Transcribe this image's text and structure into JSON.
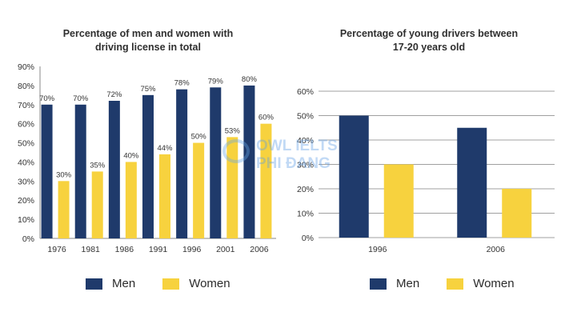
{
  "colors": {
    "men": "#1f3a6b",
    "women": "#f7d23e",
    "grid": "#a0a0a0",
    "axis": "#888888"
  },
  "chart_data": [
    {
      "type": "bar",
      "title": "Percentage of men and women with driving license in total",
      "title_lines": [
        "Percentage of men and women with",
        "driving license in total"
      ],
      "categories": [
        "1976",
        "1981",
        "1986",
        "1991",
        "1996",
        "2001",
        "2006"
      ],
      "series": [
        {
          "name": "Men",
          "values": [
            70,
            70,
            72,
            75,
            78,
            79,
            80
          ],
          "labels": [
            "70%",
            "70%",
            "72%",
            "75%",
            "78%",
            "79%",
            "80%"
          ]
        },
        {
          "name": "Women",
          "values": [
            30,
            35,
            40,
            44,
            50,
            53,
            60
          ],
          "labels": [
            "30%",
            "35%",
            "40%",
            "44%",
            "50%",
            "53%",
            "60%"
          ]
        }
      ],
      "ylim": [
        0,
        90
      ],
      "yticks": [
        "0%",
        "10%",
        "20%",
        "30%",
        "40%",
        "50%",
        "60%",
        "70%",
        "80%",
        "90%"
      ],
      "xlabel": "",
      "ylabel": "",
      "grid": false,
      "legend": [
        "Men",
        "Women"
      ]
    },
    {
      "type": "bar",
      "title": "Percentage of young drivers between 17-20 years old",
      "title_lines": [
        "Percentage of young drivers between",
        "17-20 years old"
      ],
      "categories": [
        "1996",
        "2006"
      ],
      "series": [
        {
          "name": "Men",
          "values": [
            50,
            45
          ]
        },
        {
          "name": "Women",
          "values": [
            30,
            20
          ]
        }
      ],
      "ylim": [
        0,
        60
      ],
      "yticks": [
        "0%",
        "10%",
        "20%",
        "30%",
        "40%",
        "50%",
        "60%"
      ],
      "xlabel": "",
      "ylabel": "",
      "grid": true,
      "legend": [
        "Men",
        "Women"
      ]
    }
  ],
  "watermark": {
    "line1": "OWL IELTS",
    "line2": "PHI ĐANG"
  }
}
